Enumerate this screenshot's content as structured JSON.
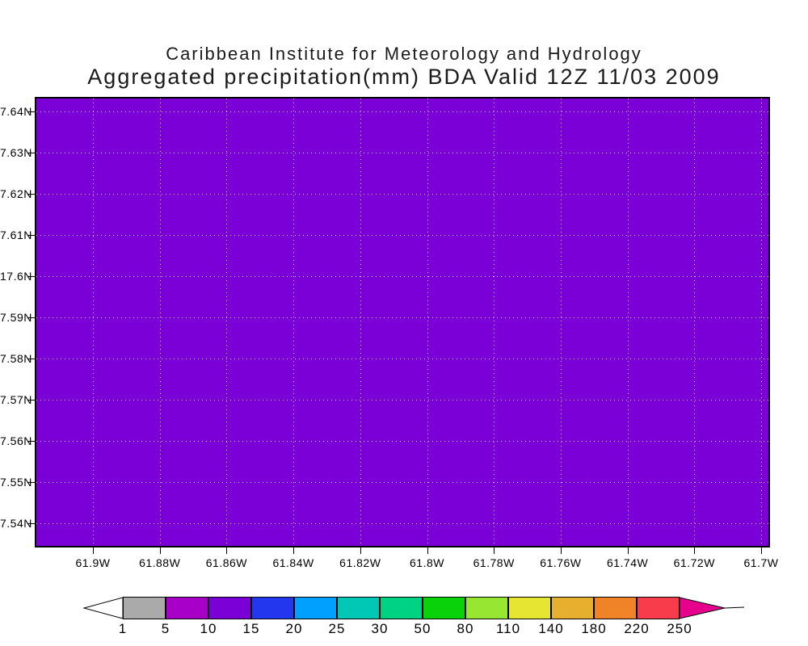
{
  "header": {
    "line1": "Caribbean Institute for Meteorology and Hydrology",
    "line2": "Aggregated precipitation(mm) BDA Valid 12Z 11/03 2009"
  },
  "chart_data": {
    "type": "heatmap",
    "title": "Caribbean Institute for Meteorology and Hydrology",
    "subtitle": "Aggregated precipitation(mm) BDA Valid 12Z 11/03 2009",
    "variable": "Aggregated precipitation (mm)",
    "station_code": "BDA",
    "valid_time": "12Z 11/03 2009",
    "y_tick_labels": [
      "7.64N",
      "7.63N",
      "7.62N",
      "7.61N",
      "17.6N",
      "7.59N",
      "7.58N",
      "7.57N",
      "7.56N",
      "7.55N",
      "7.54N"
    ],
    "x_tick_labels": [
      "61.9W",
      "61.88W",
      "61.86W",
      "61.84W",
      "61.82W",
      "61.8W",
      "61.78W",
      "61.76W",
      "61.74W",
      "61.72W",
      "61.7W"
    ],
    "field": {
      "description": "uniform filled field over entire domain",
      "fill_color": "#7B00D8",
      "value_bin": "10-15"
    },
    "grid": {
      "style": "dotted",
      "color": "rgba(255,255,255,0.85)"
    },
    "frame_color": "#000000",
    "background_color": "#FFFFFF",
    "colorbar": {
      "tick_labels": [
        "1",
        "5",
        "10",
        "15",
        "20",
        "25",
        "30",
        "50",
        "80",
        "110",
        "140",
        "180",
        "220",
        "250"
      ],
      "segment_colors": [
        "#AAAAAA",
        "#A800C8",
        "#7B00D8",
        "#2337EE",
        "#00A0FF",
        "#00C8B4",
        "#00D284",
        "#0AD20A",
        "#96E632",
        "#E6E632",
        "#E6AF2D",
        "#F08228",
        "#F93C4C"
      ],
      "below_min_color": "#FFFFFF",
      "above_max_color": "#E6008C",
      "outline_color": "#000000",
      "position": "bottom"
    }
  }
}
